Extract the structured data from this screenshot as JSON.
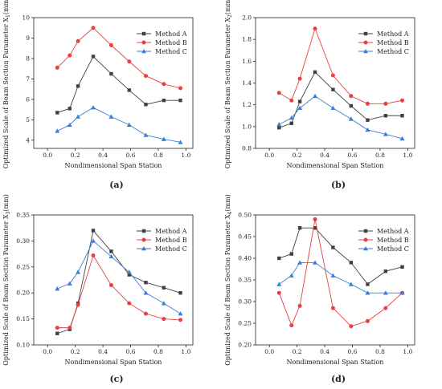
{
  "chart_data": [
    {
      "type": "line",
      "panel_label": "(a)",
      "xlabel": "Nondimensional Span Station",
      "ylabel": "Optimized Scale of Beam Section Parameter X",
      "ylabel_sub": "1",
      "ylabel_unit": "(mm)",
      "xlim": [
        -0.1,
        1.05
      ],
      "ylim": [
        3.6,
        10
      ],
      "xticks": [
        0.0,
        0.2,
        0.4,
        0.6,
        0.8,
        1.0
      ],
      "xtick_labels": [
        "0.0",
        "0.2",
        "0.4",
        "0.6",
        "0.8",
        "1.0"
      ],
      "yticks": [
        4,
        5,
        6,
        7,
        8,
        9,
        10
      ],
      "ytick_labels": [
        "4",
        "5",
        "6",
        "7",
        "8",
        "9",
        "10"
      ],
      "legend_position": "top-right",
      "x": [
        0.07,
        0.16,
        0.22,
        0.33,
        0.46,
        0.59,
        0.71,
        0.84,
        0.96
      ],
      "series": [
        {
          "name": "Method A",
          "color": "#404040",
          "marker": "square",
          "values": [
            5.35,
            5.55,
            6.65,
            8.1,
            7.25,
            6.45,
            5.75,
            5.95,
            5.95
          ]
        },
        {
          "name": "Method B",
          "color": "#e84040",
          "marker": "circle",
          "values": [
            7.55,
            8.15,
            8.85,
            9.5,
            8.65,
            7.85,
            7.15,
            6.75,
            6.55
          ]
        },
        {
          "name": "Method C",
          "color": "#3a7fd5",
          "marker": "triangle",
          "values": [
            4.45,
            4.75,
            5.15,
            5.6,
            5.15,
            4.75,
            4.25,
            4.05,
            3.9
          ]
        }
      ]
    },
    {
      "type": "line",
      "panel_label": "(b)",
      "xlabel": "Nondimensional Span Station",
      "ylabel": "Optimized Scale of Beam Section Parameter X",
      "ylabel_sub": "2",
      "ylabel_unit": "(mm)",
      "xlim": [
        -0.1,
        1.05
      ],
      "ylim": [
        0.8,
        2.0
      ],
      "xticks": [
        0.0,
        0.2,
        0.4,
        0.6,
        0.8,
        1.0
      ],
      "xtick_labels": [
        "0.0",
        "0.2",
        "0.4",
        "0.6",
        "0.8",
        "1.0"
      ],
      "yticks": [
        0.8,
        1.0,
        1.2,
        1.4,
        1.6,
        1.8,
        2.0
      ],
      "ytick_labels": [
        "0.8",
        "1.0",
        "1.2",
        "1.4",
        "1.6",
        "1.8",
        "2.0"
      ],
      "legend_position": "top-right",
      "x": [
        0.07,
        0.16,
        0.22,
        0.33,
        0.46,
        0.59,
        0.71,
        0.84,
        0.96
      ],
      "series": [
        {
          "name": "Method A",
          "color": "#404040",
          "marker": "square",
          "values": [
            0.99,
            1.03,
            1.23,
            1.5,
            1.34,
            1.19,
            1.06,
            1.1,
            1.1
          ]
        },
        {
          "name": "Method B",
          "color": "#e84040",
          "marker": "circle",
          "values": [
            1.31,
            1.24,
            1.44,
            1.9,
            1.47,
            1.28,
            1.21,
            1.21,
            1.24
          ]
        },
        {
          "name": "Method C",
          "color": "#3a7fd5",
          "marker": "triangle",
          "values": [
            1.02,
            1.08,
            1.17,
            1.28,
            1.17,
            1.07,
            0.97,
            0.93,
            0.89
          ]
        }
      ]
    },
    {
      "type": "line",
      "panel_label": "(c)",
      "xlabel": "Nondimensional Span Station",
      "ylabel": "Optimized Scale of Beam Section Parameter X",
      "ylabel_sub": "3",
      "ylabel_unit": "(mm)",
      "xlim": [
        -0.1,
        1.05
      ],
      "ylim": [
        0.1,
        0.35
      ],
      "xticks": [
        0.0,
        0.2,
        0.4,
        0.6,
        0.8,
        1.0
      ],
      "xtick_labels": [
        "0.0",
        "0.2",
        "0.4",
        "0.6",
        "0.8",
        "1.0"
      ],
      "yticks": [
        0.1,
        0.15,
        0.2,
        0.25,
        0.3,
        0.35
      ],
      "ytick_labels": [
        "0.10",
        "0.15",
        "0.20",
        "0.25",
        "0.30",
        "0.35"
      ],
      "legend_position": "top-right",
      "x": [
        0.07,
        0.16,
        0.22,
        0.33,
        0.46,
        0.59,
        0.71,
        0.84,
        0.96
      ],
      "series": [
        {
          "name": "Method A",
          "color": "#404040",
          "marker": "square",
          "values": [
            0.122,
            0.13,
            0.18,
            0.32,
            0.28,
            0.235,
            0.22,
            0.21,
            0.2
          ]
        },
        {
          "name": "Method B",
          "color": "#e84040",
          "marker": "circle",
          "values": [
            0.133,
            0.133,
            0.177,
            0.272,
            0.215,
            0.18,
            0.16,
            0.15,
            0.148
          ]
        },
        {
          "name": "Method C",
          "color": "#3a7fd5",
          "marker": "triangle",
          "values": [
            0.208,
            0.218,
            0.24,
            0.3,
            0.27,
            0.24,
            0.2,
            0.18,
            0.16
          ]
        }
      ]
    },
    {
      "type": "line",
      "panel_label": "(d)",
      "xlabel": "Nondimensional Span Station",
      "ylabel": "Optimized Scale of Beam Section Parameter X",
      "ylabel_sub": "4",
      "ylabel_unit": "(mm)",
      "xlim": [
        -0.1,
        1.05
      ],
      "ylim": [
        0.2,
        0.5
      ],
      "xticks": [
        0.0,
        0.2,
        0.4,
        0.6,
        0.8,
        1.0
      ],
      "xtick_labels": [
        "0.0",
        "0.2",
        "0.4",
        "0.6",
        "0.8",
        "1.0"
      ],
      "yticks": [
        0.2,
        0.25,
        0.3,
        0.35,
        0.4,
        0.45,
        0.5
      ],
      "ytick_labels": [
        "0.20",
        "0.25",
        "0.30",
        "0.35",
        "0.40",
        "0.45",
        "0.50"
      ],
      "legend_position": "top-right",
      "x": [
        0.07,
        0.16,
        0.22,
        0.33,
        0.46,
        0.59,
        0.71,
        0.84,
        0.96
      ],
      "series": [
        {
          "name": "Method A",
          "color": "#404040",
          "marker": "square",
          "values": [
            0.4,
            0.41,
            0.47,
            0.47,
            0.425,
            0.39,
            0.34,
            0.37,
            0.38
          ]
        },
        {
          "name": "Method B",
          "color": "#e84040",
          "marker": "circle",
          "values": [
            0.32,
            0.245,
            0.29,
            0.49,
            0.285,
            0.243,
            0.255,
            0.285,
            0.32
          ]
        },
        {
          "name": "Method C",
          "color": "#3a7fd5",
          "marker": "triangle",
          "values": [
            0.34,
            0.36,
            0.39,
            0.39,
            0.36,
            0.34,
            0.32,
            0.32,
            0.32
          ]
        }
      ]
    }
  ]
}
